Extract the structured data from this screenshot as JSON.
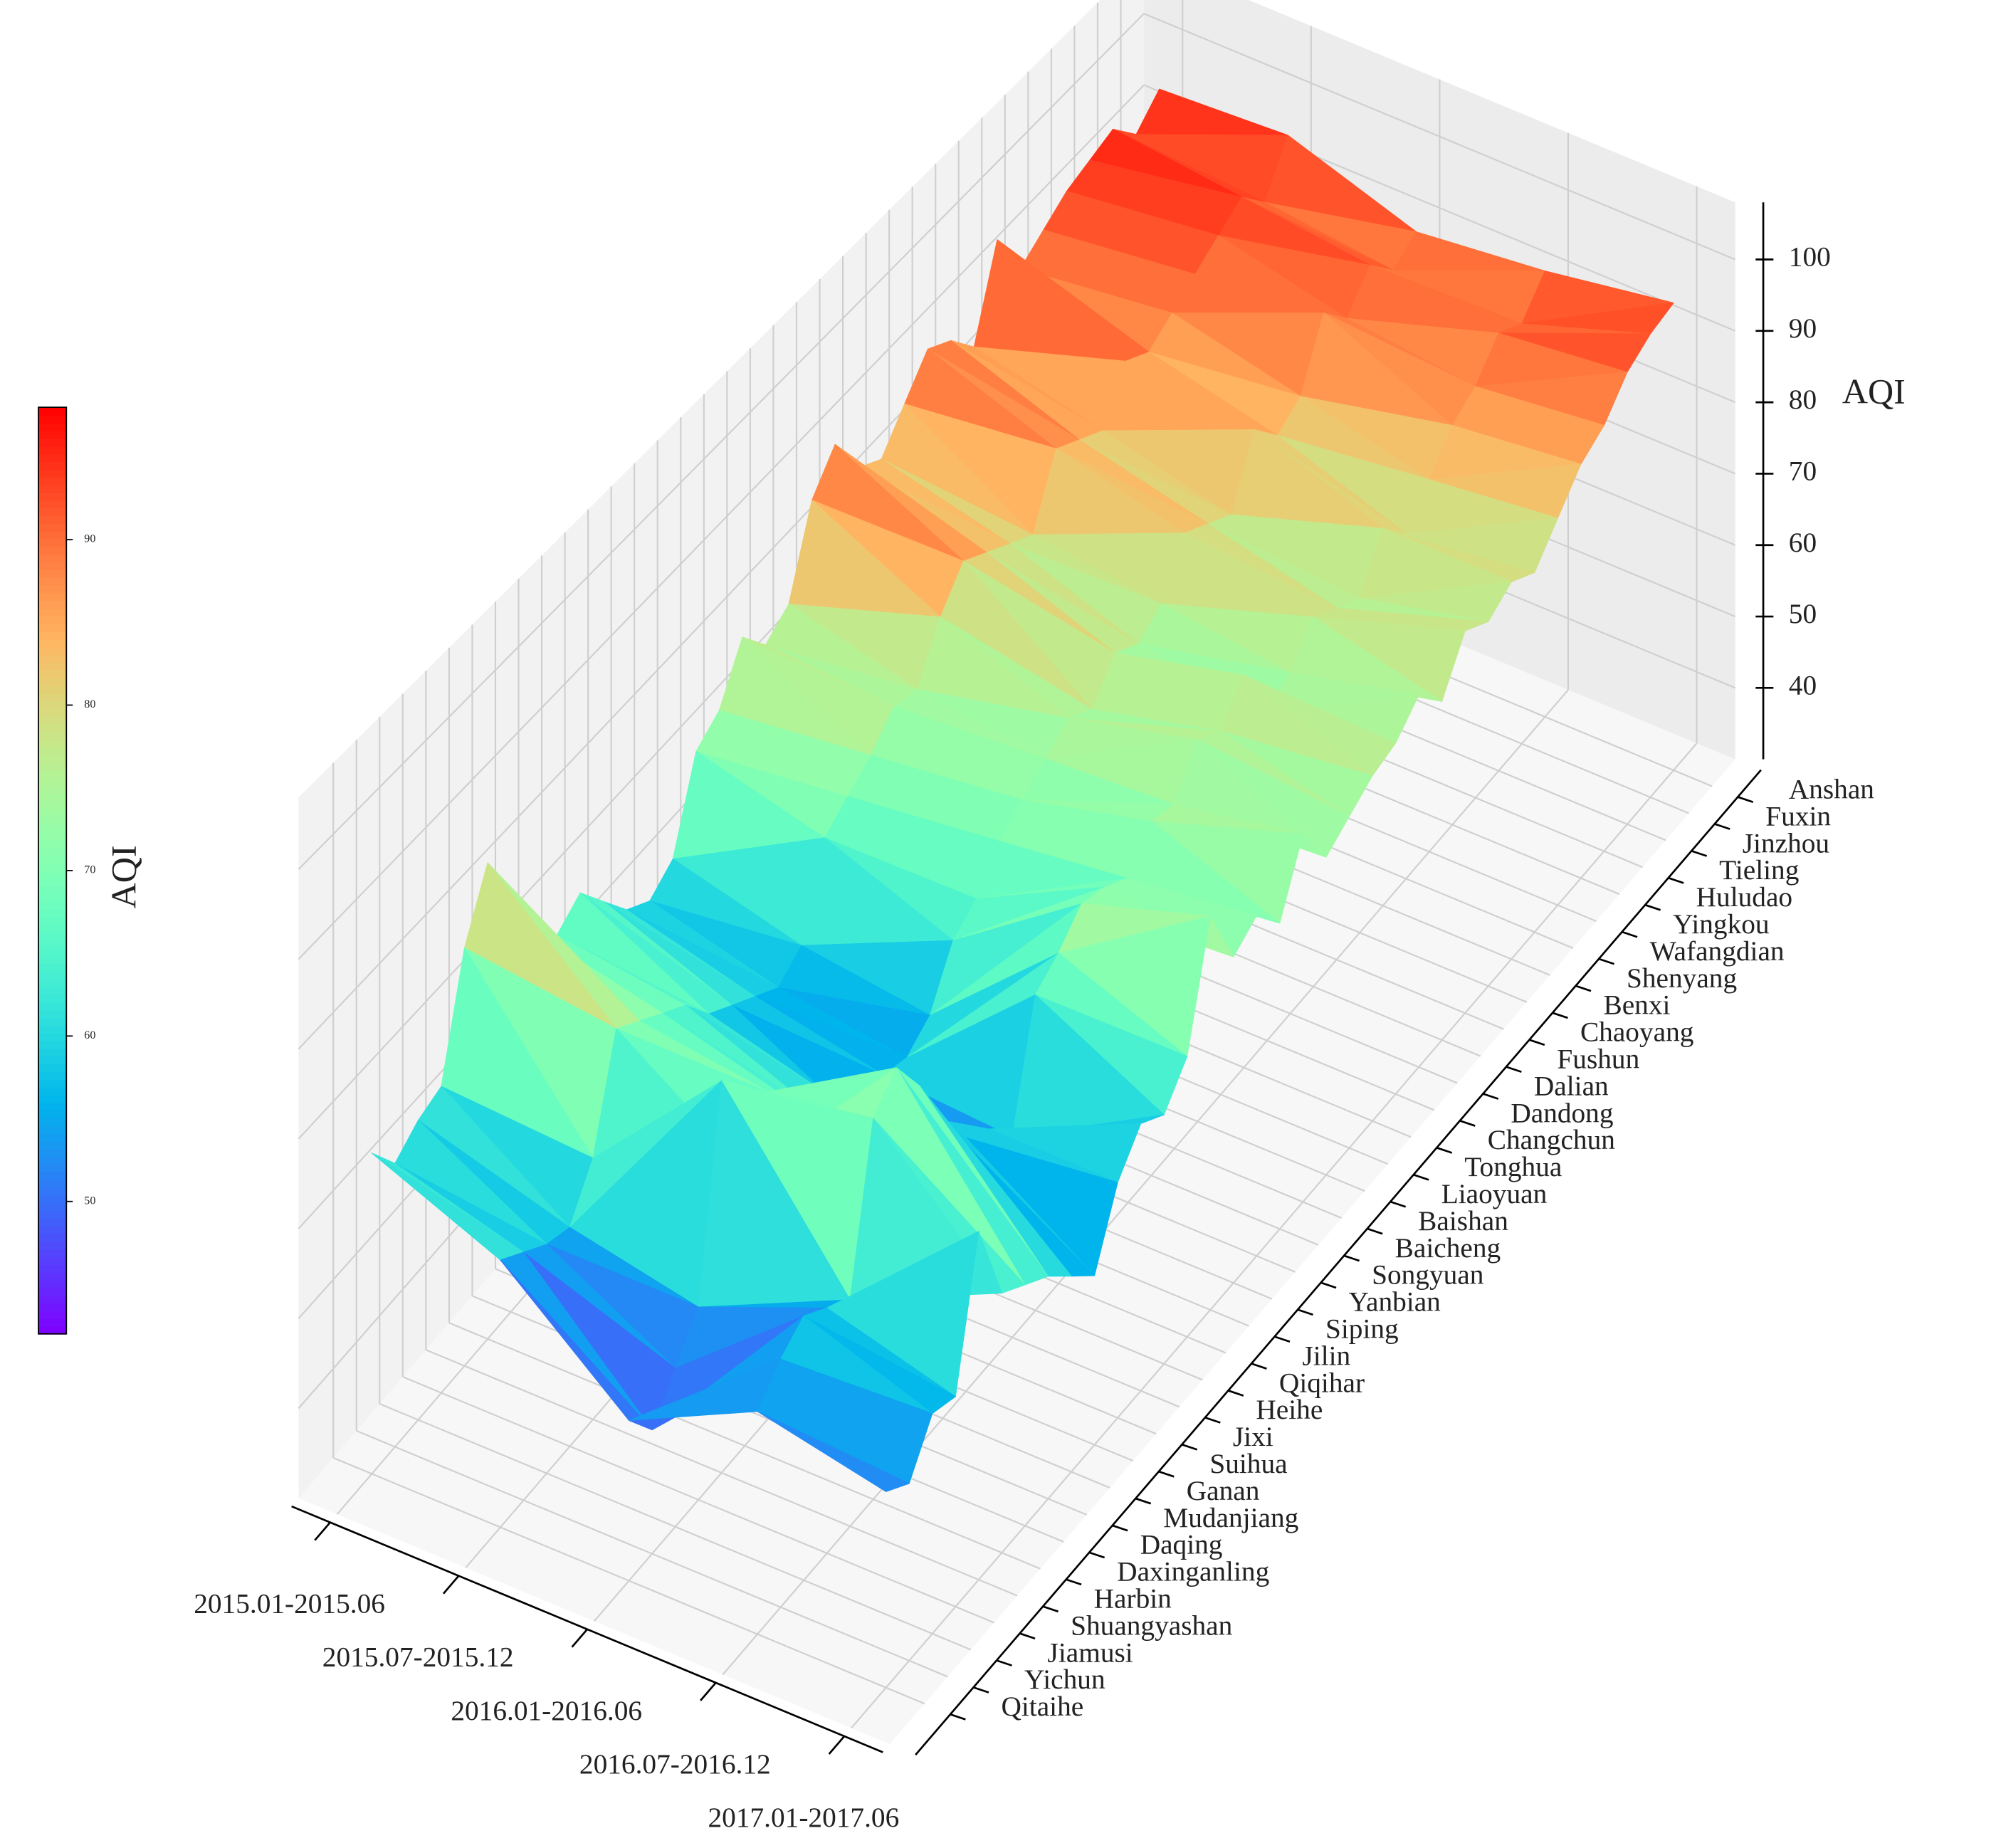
{
  "chart_data": {
    "type": "surface",
    "colormap": "rainbow",
    "x": [
      "2015.01-2015.06",
      "2015.07-2015.12",
      "2016.01-2016.06",
      "2016.07-2016.12",
      "2017.01-2017.06"
    ],
    "y": [
      "Qitaihe",
      "Yichun",
      "Jiamusi",
      "Shuangyashan",
      "Harbin",
      "Daxinganling",
      "Daqing",
      "Mudanjiang",
      "Ganan",
      "Suihua",
      "Jixi",
      "Heihe",
      "Qiqihar",
      "Jilin",
      "Siping",
      "Yanbian",
      "Songyuan",
      "Baicheng",
      "Baishan",
      "Liaoyuan",
      "Tonghua",
      "Changchun",
      "Dandong",
      "Dalian",
      "Fushun",
      "Chaoyang",
      "Benxi",
      "Shenyang",
      "Wafangdian",
      "Yingkou",
      "Huludao",
      "Tieling",
      "Jinzhou",
      "Fuxin",
      "Anshan"
    ],
    "values": [
      [
        66,
        60,
        48,
        55,
        52
      ],
      [
        62,
        58,
        44,
        58,
        50
      ],
      [
        64,
        56,
        48,
        60,
        55
      ],
      [
        65,
        55,
        52,
        58,
        54
      ],
      [
        78,
        60,
        75,
        56,
        70
      ],
      [
        85,
        72,
        62,
        74,
        60
      ],
      [
        76,
        70,
        68,
        77,
        58
      ],
      [
        70,
        68,
        64,
        72,
        56
      ],
      [
        68,
        66,
        60,
        65,
        53
      ],
      [
        70,
        62,
        58,
        60,
        50
      ],
      [
        66,
        60,
        52,
        58,
        58
      ],
      [
        62,
        58,
        55,
        54,
        62
      ],
      [
        60,
        56,
        54,
        68,
        60
      ],
      [
        62,
        58,
        56,
        70,
        64
      ],
      [
        72,
        68,
        62,
        73,
        78
      ],
      [
        74,
        70,
        64,
        72,
        70
      ],
      [
        80,
        72,
        68,
        70,
        72
      ],
      [
        76,
        75,
        70,
        74,
        68
      ],
      [
        78,
        74,
        72,
        73,
        76
      ],
      [
        88,
        80,
        74,
        78,
        70
      ],
      [
        92,
        84,
        72,
        76,
        72
      ],
      [
        86,
        82,
        76,
        80,
        74
      ],
      [
        84,
        80,
        74,
        72,
        75
      ],
      [
        88,
        78,
        76,
        74,
        78
      ],
      [
        92,
        86,
        82,
        78,
        74
      ],
      [
        90,
        84,
        80,
        76,
        80
      ],
      [
        86,
        82,
        78,
        74,
        78
      ],
      [
        97,
        88,
        86,
        80,
        80
      ],
      [
        90,
        86,
        82,
        76,
        78
      ],
      [
        92,
        88,
        84,
        80,
        82
      ],
      [
        94,
        90,
        92,
        84,
        86
      ],
      [
        95,
        92,
        88,
        86,
        88
      ],
      [
        96,
        94,
        92,
        90,
        92
      ],
      [
        92,
        90,
        88,
        88,
        94
      ],
      [
        95,
        96,
        90,
        92,
        95
      ]
    ],
    "zlabel": "AQI",
    "zlim": [
      30,
      108
    ],
    "zticks": [
      40,
      50,
      60,
      70,
      80,
      90,
      100
    ],
    "colorbar": {
      "label": "AQI",
      "lim": [
        42,
        98
      ],
      "ticks": [
        50,
        60,
        70,
        80,
        90
      ]
    }
  }
}
